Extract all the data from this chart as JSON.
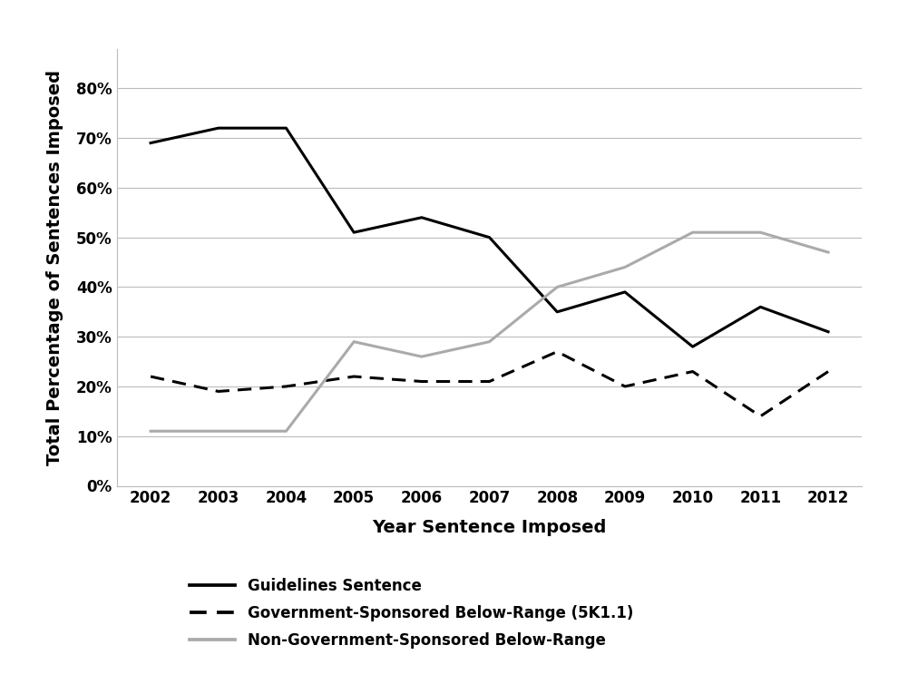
{
  "years": [
    2002,
    2003,
    2004,
    2005,
    2006,
    2007,
    2008,
    2009,
    2010,
    2011,
    2012
  ],
  "guidelines": [
    0.69,
    0.72,
    0.72,
    0.51,
    0.54,
    0.5,
    0.35,
    0.39,
    0.28,
    0.36,
    0.31
  ],
  "gov_sponsored": [
    0.22,
    0.19,
    0.2,
    0.22,
    0.21,
    0.21,
    0.27,
    0.2,
    0.23,
    0.14,
    0.23
  ],
  "non_gov": [
    0.11,
    0.11,
    0.11,
    0.29,
    0.26,
    0.29,
    0.4,
    0.44,
    0.51,
    0.51,
    0.47
  ],
  "xlabel": "Year Sentence Imposed",
  "ylabel": "Total Percentage of Sentences Imposed",
  "ylim": [
    0.0,
    0.88
  ],
  "yticks": [
    0.0,
    0.1,
    0.2,
    0.3,
    0.4,
    0.5,
    0.6,
    0.7,
    0.8
  ],
  "ytick_labels": [
    "0%",
    "10%",
    "20%",
    "30%",
    "40%",
    "50%",
    "60%",
    "70%",
    "80%"
  ],
  "guidelines_color": "#000000",
  "gov_color": "#000000",
  "non_gov_color": "#aaaaaa",
  "legend_labels": [
    "Guidelines Sentence",
    "Government-Sponsored Below-Range (5K1.1)",
    "Non-Government-Sponsored Below-Range"
  ],
  "background_color": "#ffffff",
  "grid_color": "#bbbbbb",
  "linewidth": 2.2,
  "fontsize_axis_label": 14,
  "fontsize_tick": 12,
  "fontsize_legend": 12
}
